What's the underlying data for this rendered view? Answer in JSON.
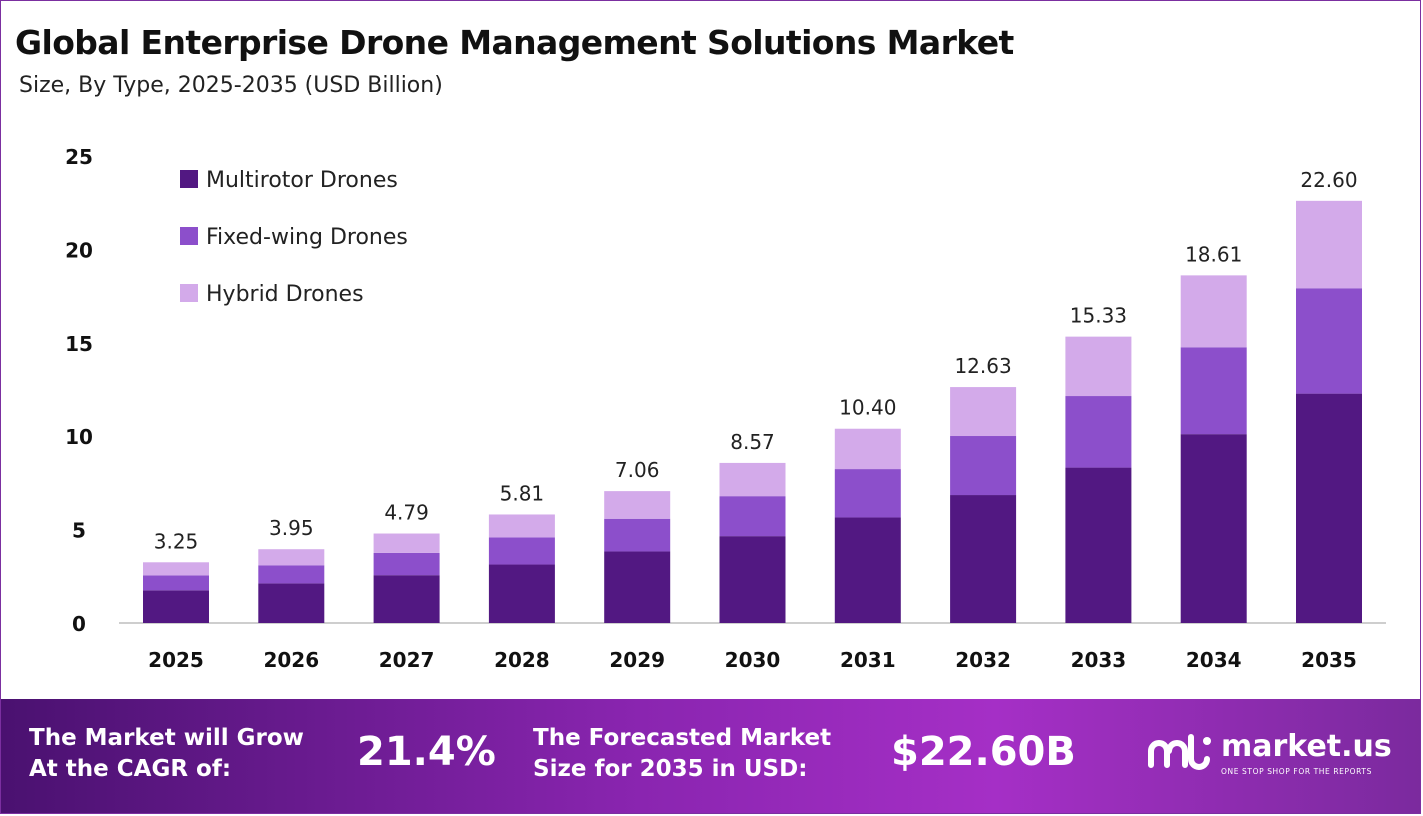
{
  "header": {
    "title": "Global Enterprise Drone Management Solutions Market",
    "subtitle": "Size, By Type, 2025-2035 (USD Billion)"
  },
  "chart_data": {
    "type": "bar",
    "stacked": true,
    "categories": [
      "2025",
      "2026",
      "2027",
      "2028",
      "2029",
      "2030",
      "2031",
      "2032",
      "2033",
      "2034",
      "2035"
    ],
    "series": [
      {
        "name": "Multirotor Drones",
        "color": "#521882",
        "values": [
          1.75,
          2.12,
          2.56,
          3.13,
          3.83,
          4.65,
          5.65,
          6.85,
          8.32,
          10.11,
          12.28
        ]
      },
      {
        "name": "Fixed-wing Drones",
        "color": "#8c4fcb",
        "values": [
          0.8,
          0.97,
          1.19,
          1.45,
          1.75,
          2.14,
          2.59,
          3.16,
          3.83,
          4.65,
          5.64
        ]
      },
      {
        "name": "Hybrid Drones",
        "color": "#d3aaea",
        "values": [
          0.7,
          0.86,
          1.04,
          1.23,
          1.48,
          1.78,
          2.16,
          2.62,
          3.18,
          3.85,
          4.68
        ]
      }
    ],
    "totals": [
      "3.25",
      "3.95",
      "4.79",
      "5.81",
      "7.06",
      "8.57",
      "10.40",
      "12.63",
      "15.33",
      "18.61",
      "22.60"
    ],
    "yticks": [
      "0",
      "5",
      "10",
      "15",
      "20",
      "25"
    ],
    "ylim": [
      0,
      25
    ],
    "legend": "top-left",
    "grid": false
  },
  "footer": {
    "cagr_label_1": "The Market will Grow",
    "cagr_label_2": "At the CAGR of:",
    "cagr_value": "21.4%",
    "forecast_label_1": "The Forecasted Market",
    "forecast_label_2": "Size for 2035 in USD:",
    "forecast_value": "$22.60B",
    "logo_word": "market.us",
    "logo_tagline": "ONE STOP SHOP FOR THE REPORTS",
    "logo_icon": "market-us-logo-icon"
  }
}
